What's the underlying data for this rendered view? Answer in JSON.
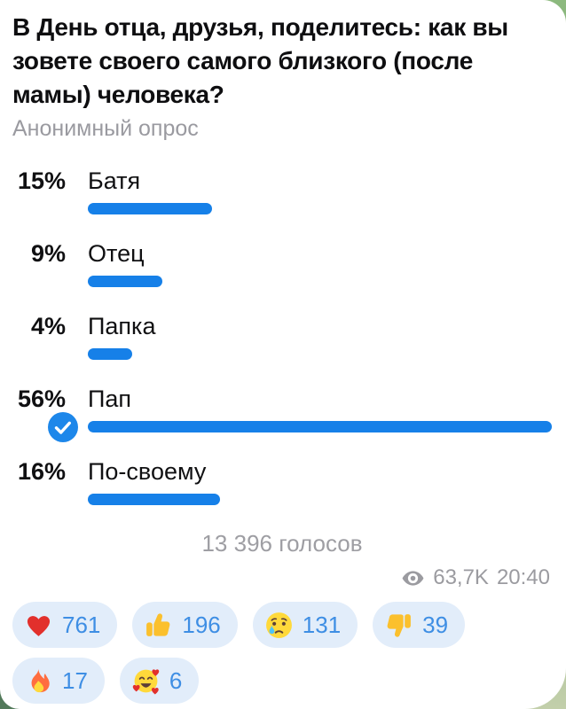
{
  "poll": {
    "question": "В День отца, друзья, поделитесь: как вы зовете своего самого близкого (после мамы) человека?",
    "type_label": "Анонимный опрос",
    "options": [
      {
        "percent": "15%",
        "pct": 15,
        "label": "Батя",
        "voted": false
      },
      {
        "percent": "9%",
        "pct": 9,
        "label": "Отец",
        "voted": false
      },
      {
        "percent": "4%",
        "pct": 4,
        "label": "Папка",
        "voted": false
      },
      {
        "percent": "56%",
        "pct": 56,
        "label": "Пап",
        "voted": true
      },
      {
        "percent": "16%",
        "pct": 16,
        "label": "По-своему",
        "voted": false
      }
    ],
    "votes_label": "13 396 голосов"
  },
  "meta": {
    "views": "63,7K",
    "time": "20:40",
    "views_icon": "eye-icon"
  },
  "reactions": [
    {
      "icon": "heart-emoji",
      "count": "761"
    },
    {
      "icon": "thumbs-up-emoji",
      "count": "196"
    },
    {
      "icon": "crying-face-emoji",
      "count": "131"
    },
    {
      "icon": "thumbs-down-emoji",
      "count": "39"
    },
    {
      "icon": "fire-emoji",
      "count": "17"
    },
    {
      "icon": "smiling-face-with-hearts-emoji",
      "count": "6"
    }
  ],
  "colors": {
    "bar_blue": "#1680e8",
    "check_blue": "#1d87ea",
    "reaction_pill_bg": "#e2edfa",
    "reaction_count_blue": "#3e8ee4",
    "muted_gray": "#9a9aa0",
    "wallpaper_green": "#8cb97e"
  }
}
